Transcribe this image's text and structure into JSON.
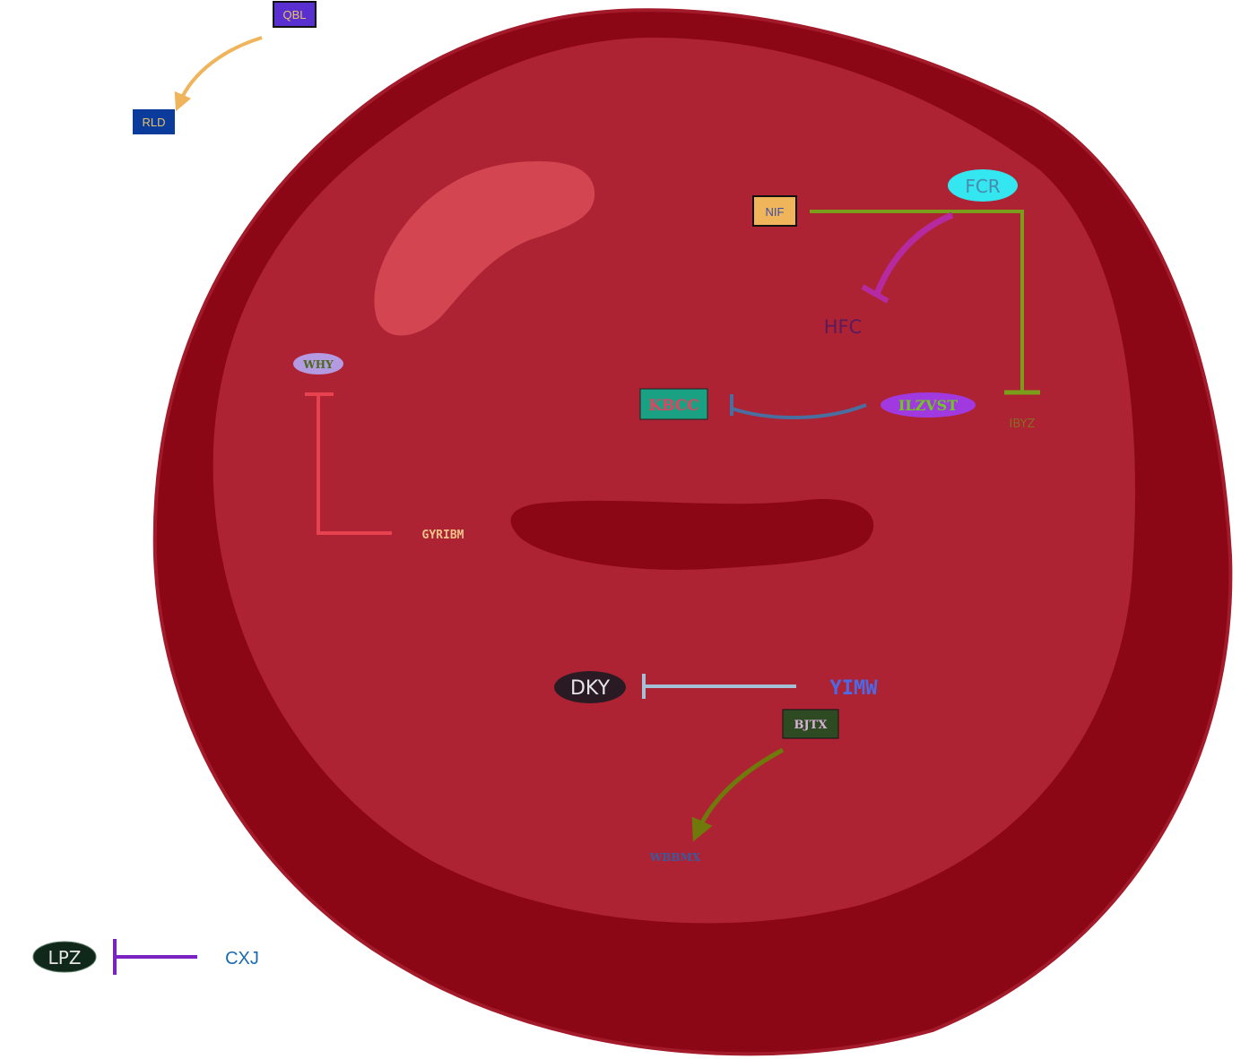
{
  "colors": {
    "cell_outer": "#8c0716",
    "cell_inner": "#ae2333",
    "highlight": "#d34551",
    "nucleus_slit": "#8c0716"
  },
  "nodes": {
    "qbl": "QBL",
    "rld": "RLD",
    "nif": "NIF",
    "fcr": "FCR",
    "hfc": "HFC",
    "why": "WHY",
    "kbcc": "KBCC",
    "ilzvst": "ILZVST",
    "ibyz": "IBYZ",
    "gyribm": "GYRIBM",
    "dky": "DKY",
    "yimw": "YIMW",
    "bjtx": "BJTX",
    "wbbmx": "WBBMX",
    "lpz": "LPZ",
    "cxj": "CXJ"
  },
  "edges": [
    {
      "from": "QBL",
      "to": "RLD",
      "type": "activation"
    },
    {
      "from": "NIF",
      "to": "IBYZ",
      "type": "inhibition"
    },
    {
      "from": "FCR",
      "to": "HFC",
      "type": "inhibition"
    },
    {
      "from": "ILZVST",
      "to": "KBCC",
      "type": "inhibition"
    },
    {
      "from": "GYRIBM",
      "to": "WHY",
      "type": "inhibition"
    },
    {
      "from": "YIMW",
      "to": "DKY",
      "type": "inhibition"
    },
    {
      "from": "BJTX",
      "to": "WBBMX",
      "type": "activation"
    },
    {
      "from": "CXJ",
      "to": "LPZ",
      "type": "inhibition"
    }
  ]
}
